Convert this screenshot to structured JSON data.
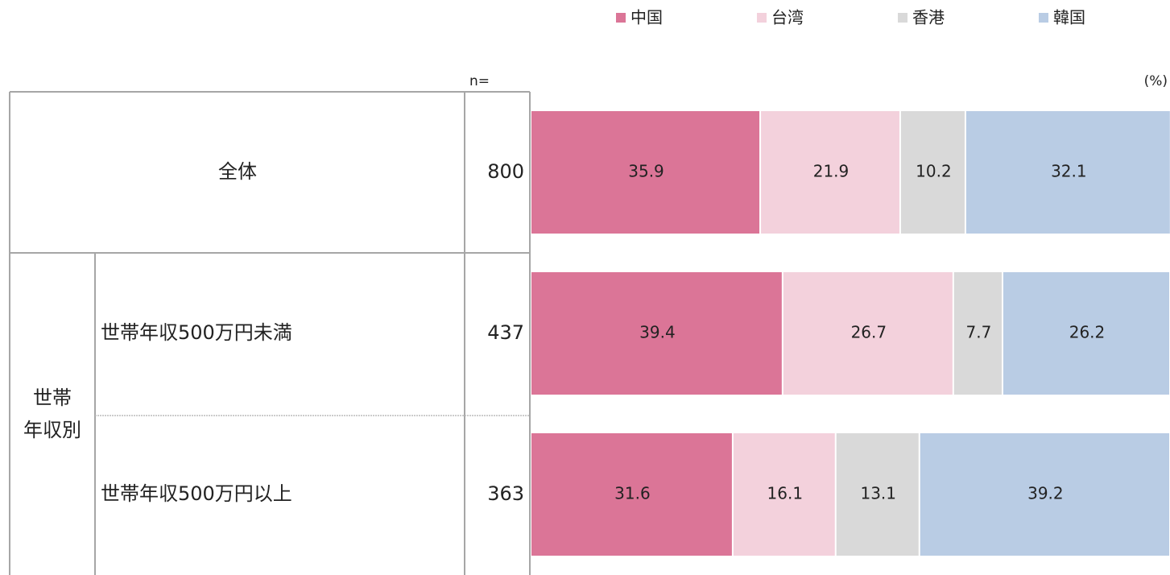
{
  "chart_data": {
    "type": "stacked-bar",
    "n_label": "n=",
    "unit_label": "(%)",
    "group_label": "世帯\n年収別",
    "categories": [
      "全体",
      "世帯年収500万円未満",
      "世帯年収500万円以上"
    ],
    "n": [
      800,
      437,
      363
    ],
    "series": [
      {
        "name": "中国",
        "color": "#db7597",
        "values": [
          35.9,
          39.4,
          31.6
        ]
      },
      {
        "name": "台湾",
        "color": "#f3d1dc",
        "values": [
          21.9,
          26.7,
          16.1
        ]
      },
      {
        "name": "香港",
        "color": "#d9d9d9",
        "values": [
          10.2,
          7.7,
          13.1
        ]
      },
      {
        "name": "韓国",
        "color": "#b9cce4",
        "values": [
          32.1,
          26.2,
          39.2
        ]
      }
    ],
    "xlim": [
      0,
      100
    ]
  }
}
